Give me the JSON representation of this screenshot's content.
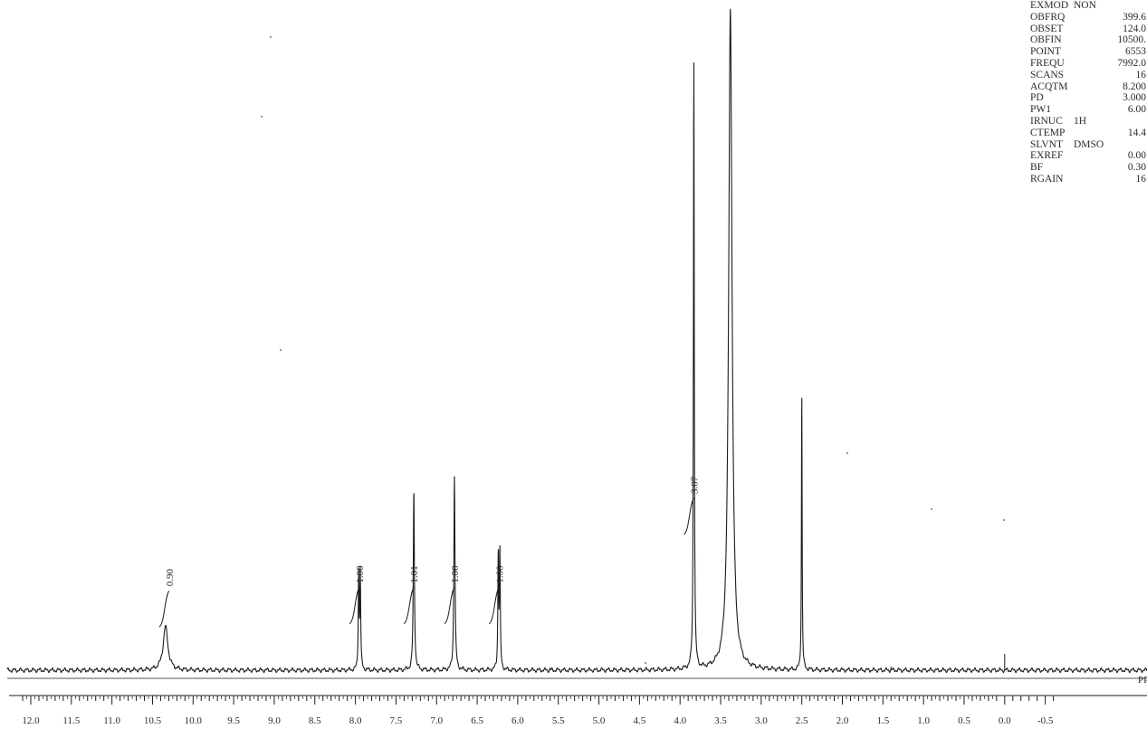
{
  "chart_data": {
    "type": "line",
    "title": "",
    "xlabel": "PPM",
    "ylabel": "",
    "x_reversed": true,
    "xlim": [
      12.2,
      -0.6
    ],
    "x_ticks": [
      12.0,
      11.5,
      11.0,
      10.5,
      10.0,
      9.5,
      9.0,
      8.5,
      8.0,
      7.5,
      7.0,
      6.5,
      6.0,
      5.5,
      5.0,
      4.5,
      4.0,
      3.5,
      3.0,
      2.5,
      2.0,
      1.5,
      1.0,
      0.5,
      0.0,
      -0.5
    ],
    "x_tick_labels": [
      "12.0",
      "11.5",
      "11.0",
      "10.5",
      "10.0",
      "9.5",
      "9.0",
      "8.5",
      "8.0",
      "7.5",
      "7.0",
      "6.5",
      "6.0",
      "5.5",
      "5.0",
      "4.5",
      "4.0",
      "3.5",
      "3.0",
      "2.5",
      "2.0",
      "1.5",
      "1.0",
      "0.5",
      "0.0",
      "-0.5"
    ],
    "grid": false,
    "peaks": [
      {
        "ppm": 10.34,
        "height": 0.066,
        "width": 0.035
      },
      {
        "ppm": 7.96,
        "height": 0.146,
        "width": 0.006
      },
      {
        "ppm": 7.94,
        "height": 0.146,
        "width": 0.006
      },
      {
        "ppm": 7.28,
        "height": 0.272,
        "width": 0.008
      },
      {
        "ppm": 6.78,
        "height": 0.296,
        "width": 0.008
      },
      {
        "ppm": 6.24,
        "height": 0.176,
        "width": 0.006
      },
      {
        "ppm": 6.22,
        "height": 0.176,
        "width": 0.006
      },
      {
        "ppm": 3.83,
        "height": 0.93,
        "width": 0.006
      },
      {
        "ppm": 3.38,
        "height": 1.0,
        "width": 0.025
      },
      {
        "ppm": 2.5,
        "height": 0.423,
        "width": 0.005
      }
    ],
    "integrals": [
      {
        "label": "0.90",
        "ppm": 10.34
      },
      {
        "label": "1.00",
        "ppm": 7.95
      },
      {
        "label": "1.01",
        "ppm": 7.28
      },
      {
        "label": "1.00",
        "ppm": 6.78
      },
      {
        "label": "1.00",
        "ppm": 6.23
      },
      {
        "label": "3.07",
        "ppm": 3.83
      }
    ]
  },
  "params": [
    {
      "name": "EXMOD",
      "value": "NON",
      "align": "left"
    },
    {
      "name": "OBFRQ",
      "value": "399.6"
    },
    {
      "name": "OBSET",
      "value": "124.0"
    },
    {
      "name": "OBFIN",
      "value": "10500."
    },
    {
      "name": "POINT",
      "value": "6553"
    },
    {
      "name": "FREQU",
      "value": "7992.0"
    },
    {
      "name": "SCANS",
      "value": "16"
    },
    {
      "name": "ACQTM",
      "value": "8.200"
    },
    {
      "name": "PD",
      "value": "3.000"
    },
    {
      "name": "PW1",
      "value": "6.00"
    },
    {
      "name": "IRNUC",
      "value": "1H",
      "align": "left"
    },
    {
      "name": "CTEMP",
      "value": "14.4"
    },
    {
      "name": "SLVNT",
      "value": "DMSO",
      "align": "left"
    },
    {
      "name": "EXREF",
      "value": "0.00"
    },
    {
      "name": "BF",
      "value": "0.30"
    },
    {
      "name": "RGAIN",
      "value": "16"
    }
  ],
  "colors": {
    "trace": "#1c1c1c",
    "background": "#ffffff",
    "text": "#2a2a2a"
  }
}
